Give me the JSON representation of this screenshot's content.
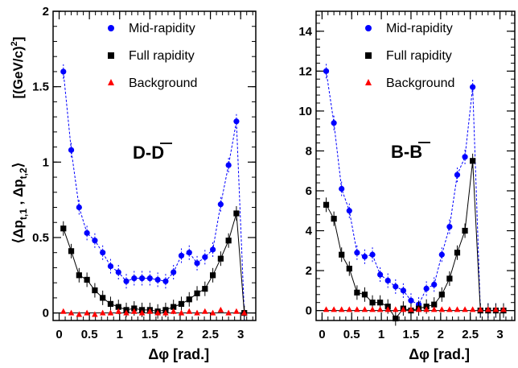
{
  "figure": {
    "ylabel_text": "⟨Δp",
    "ylabel_sub1": "t,1",
    "ylabel_mid": " , Δp",
    "ylabel_sub2": "t,2",
    "ylabel_end": "⟩",
    "ylabel_units": "[(GeV/c)",
    "ylabel_units_sup": "2",
    "ylabel_units_end": "]"
  },
  "chart_data": [
    {
      "type": "scatter",
      "annotation": "D-D",
      "annotation_overbar_part": "D",
      "xlabel": "Δφ  [rad.]",
      "xlim": [
        -0.1,
        3.25
      ],
      "ylim": [
        -0.05,
        2.0
      ],
      "xticks": [
        "0",
        "0.5",
        "1",
        "1.5",
        "2",
        "2.5",
        "3"
      ],
      "yticks": [
        "0",
        "0.5",
        "1",
        "1.5",
        "2"
      ],
      "ytick_values": [
        0,
        0.5,
        1,
        1.5,
        2
      ],
      "xtick_values": [
        0,
        0.5,
        1,
        1.5,
        2,
        2.5,
        3
      ],
      "legend_position": "top-right",
      "series": [
        {
          "name": "Mid-rapidity",
          "color": "#0000ff",
          "marker": "circle",
          "line": "dotted",
          "x": [
            0.07,
            0.2,
            0.33,
            0.46,
            0.59,
            0.72,
            0.85,
            0.98,
            1.11,
            1.24,
            1.37,
            1.5,
            1.63,
            1.76,
            1.89,
            2.02,
            2.15,
            2.28,
            2.41,
            2.54,
            2.67,
            2.8,
            2.93,
            3.06
          ],
          "y": [
            1.6,
            1.08,
            0.7,
            0.53,
            0.48,
            0.4,
            0.31,
            0.27,
            0.21,
            0.23,
            0.23,
            0.23,
            0.22,
            0.21,
            0.27,
            0.38,
            0.4,
            0.33,
            0.37,
            0.42,
            0.72,
            0.98,
            1.27,
            0.0
          ]
        },
        {
          "name": "Full rapidity",
          "color": "#000000",
          "marker": "square",
          "line": "solid",
          "x": [
            0.07,
            0.2,
            0.33,
            0.46,
            0.59,
            0.72,
            0.85,
            0.98,
            1.11,
            1.24,
            1.37,
            1.5,
            1.63,
            1.76,
            1.89,
            2.02,
            2.15,
            2.28,
            2.41,
            2.54,
            2.67,
            2.8,
            2.93,
            3.06
          ],
          "y": [
            0.56,
            0.41,
            0.25,
            0.22,
            0.15,
            0.1,
            0.06,
            0.04,
            0.02,
            0.03,
            0.02,
            0.02,
            0.01,
            0.02,
            0.04,
            0.06,
            0.09,
            0.13,
            0.16,
            0.25,
            0.36,
            0.48,
            0.66,
            0.0
          ]
        },
        {
          "name": "Background",
          "color": "#ff0000",
          "marker": "triangle",
          "line": "none",
          "x": [
            0.07,
            0.2,
            0.33,
            0.46,
            0.59,
            0.72,
            0.85,
            0.98,
            1.11,
            1.24,
            1.37,
            1.5,
            1.63,
            1.76,
            1.89,
            2.02,
            2.15,
            2.28,
            2.41,
            2.54,
            2.67,
            2.8,
            2.93,
            3.06
          ],
          "y": [
            0.01,
            0.0,
            -0.01,
            0.0,
            -0.01,
            0.0,
            0.0,
            0.01,
            0.0,
            0.01,
            0.0,
            0.01,
            0.0,
            0.0,
            0.01,
            0.0,
            0.01,
            0.0,
            0.01,
            0.0,
            0.02,
            0.0,
            0.01,
            0.0
          ]
        }
      ]
    },
    {
      "type": "scatter",
      "annotation": "B-B",
      "annotation_overbar_part": "B",
      "xlabel": "Δφ  [rad.]",
      "xlim": [
        -0.1,
        3.25
      ],
      "ylim": [
        -0.5,
        15.0
      ],
      "xticks": [
        "0",
        "0.5",
        "1",
        "1.5",
        "2",
        "2.5",
        "3"
      ],
      "yticks": [
        "0",
        "2",
        "4",
        "6",
        "8",
        "10",
        "12",
        "14"
      ],
      "ytick_values": [
        0,
        2,
        4,
        6,
        8,
        10,
        12,
        14
      ],
      "xtick_values": [
        0,
        0.5,
        1,
        1.5,
        2,
        2.5,
        3
      ],
      "legend_position": "top-right",
      "series": [
        {
          "name": "Mid-rapidity",
          "color": "#0000ff",
          "marker": "circle",
          "line": "dotted",
          "x": [
            0.07,
            0.2,
            0.33,
            0.46,
            0.59,
            0.72,
            0.85,
            0.98,
            1.11,
            1.24,
            1.37,
            1.5,
            1.63,
            1.76,
            1.89,
            2.02,
            2.15,
            2.28,
            2.41,
            2.54,
            2.67,
            2.8,
            2.93,
            3.06
          ],
          "y": [
            12.0,
            9.4,
            6.1,
            5.0,
            2.9,
            2.7,
            2.8,
            1.8,
            1.5,
            1.2,
            1.0,
            0.5,
            0.3,
            1.1,
            1.3,
            2.8,
            4.2,
            6.8,
            7.7,
            11.2,
            0.0,
            0.0,
            0.0,
            0.0
          ]
        },
        {
          "name": "Full rapidity",
          "color": "#000000",
          "marker": "square",
          "line": "solid",
          "x": [
            0.07,
            0.2,
            0.33,
            0.46,
            0.59,
            0.72,
            0.85,
            0.98,
            1.11,
            1.24,
            1.37,
            1.5,
            1.63,
            1.76,
            1.89,
            2.02,
            2.15,
            2.28,
            2.41,
            2.54,
            2.67,
            2.8,
            2.93,
            3.06
          ],
          "y": [
            5.3,
            4.6,
            2.8,
            2.1,
            0.9,
            0.8,
            0.4,
            0.4,
            0.2,
            -0.4,
            0.1,
            0.0,
            0.1,
            0.2,
            0.3,
            0.8,
            1.6,
            2.9,
            4.0,
            7.5,
            0.0,
            0.0,
            0.0,
            0.0
          ]
        },
        {
          "name": "Background",
          "color": "#ff0000",
          "marker": "triangle",
          "line": "none",
          "x": [
            0.07,
            0.2,
            0.33,
            0.46,
            0.59,
            0.72,
            0.85,
            0.98,
            1.11,
            1.24,
            1.37,
            1.5,
            1.63,
            1.76,
            1.89,
            2.02,
            2.15,
            2.28,
            2.41,
            2.54,
            2.67,
            2.8,
            2.93,
            3.06
          ],
          "y": [
            0.05,
            0.05,
            0.05,
            0.05,
            0.05,
            0.05,
            0.05,
            0.05,
            0.05,
            0.05,
            0.05,
            0.05,
            0.05,
            0.05,
            0.05,
            0.05,
            0.05,
            0.05,
            0.05,
            0.05,
            0.05,
            0.05,
            0.05,
            0.05
          ]
        }
      ]
    }
  ]
}
